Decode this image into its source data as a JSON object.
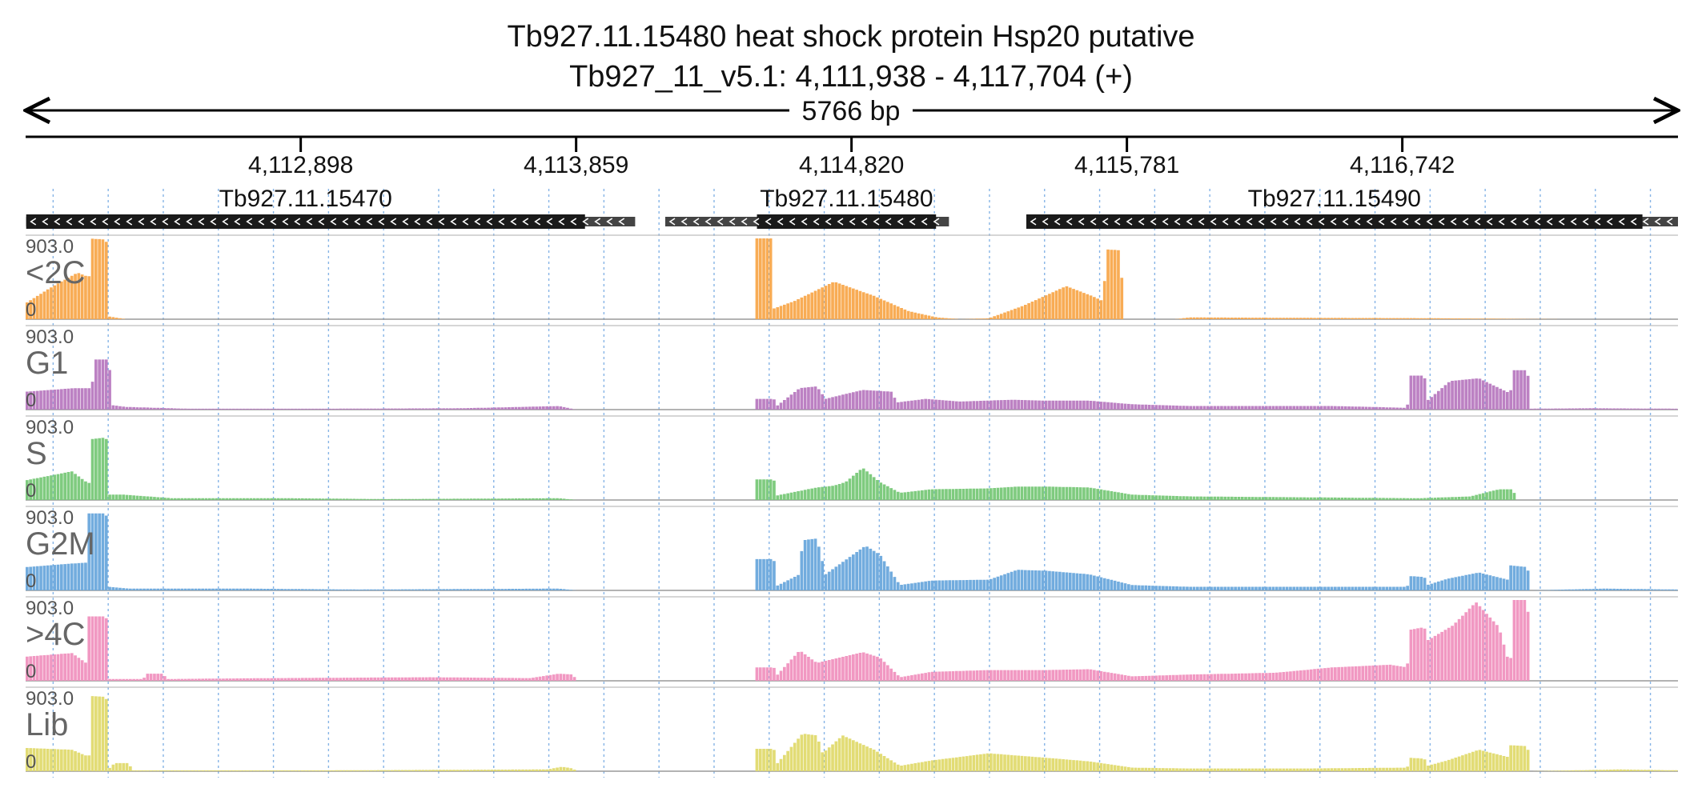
{
  "chart_data": {
    "type": "area",
    "title": "Tb927.11.15480  heat shock protein Hsp20  putative",
    "subtitle": "Tb927_11_v5.1: 4,111,938 - 4,117,704 (+)",
    "span_label": "5766 bp",
    "xlim": [
      4111938,
      4117704
    ],
    "ylim": [
      0,
      903.0
    ],
    "ymax_label": "903.0",
    "ymin_label": "0",
    "grid": true,
    "ticks": [
      {
        "value": 4112898,
        "label": "4,112,898"
      },
      {
        "value": 4113859,
        "label": "4,113,859"
      },
      {
        "value": 4114820,
        "label": "4,114,820"
      },
      {
        "value": 4115781,
        "label": "4,115,781"
      },
      {
        "value": 4116742,
        "label": "4,116,742"
      }
    ],
    "genes": [
      {
        "name": "Tb927.11.15470",
        "strand": "-",
        "utr_start": 4111940,
        "cds_start": 4111940,
        "cds_end": 4113890,
        "utr_end": 4114065
      },
      {
        "name": "Tb927.11.15480",
        "strand": "-",
        "utr_start": 4114170,
        "cds_start": 4114490,
        "cds_end": 4115115,
        "utr_end": 4115160
      },
      {
        "name": "Tb927.11.15490",
        "strand": "-",
        "utr_start": 4115430,
        "cds_start": 4115430,
        "cds_end": 4117580,
        "utr_end": 4117704
      }
    ],
    "tracks": [
      {
        "name": "<2C",
        "color": "#f8a84c",
        "profile": [
          [
            4111940,
            180
          ],
          [
            4112030,
            360
          ],
          [
            4112120,
            520
          ],
          [
            4112160,
            470
          ],
          [
            4112170,
            900
          ],
          [
            4112220,
            890
          ],
          [
            4112230,
            30
          ],
          [
            4112290,
            0
          ],
          [
            4114480,
            0
          ],
          [
            4114490,
            903
          ],
          [
            4114540,
            903
          ],
          [
            4114550,
            120
          ],
          [
            4114620,
            200
          ],
          [
            4114760,
            420
          ],
          [
            4114900,
            260
          ],
          [
            4115020,
            90
          ],
          [
            4115120,
            20
          ],
          [
            4115200,
            0
          ],
          [
            4115300,
            10
          ],
          [
            4115420,
            150
          ],
          [
            4115570,
            370
          ],
          [
            4115660,
            260
          ],
          [
            4115700,
            200
          ],
          [
            4115710,
            780
          ],
          [
            4115760,
            770
          ],
          [
            4115770,
            0
          ],
          [
            4115950,
            0
          ],
          [
            4116000,
            20
          ],
          [
            4116400,
            15
          ],
          [
            4116800,
            12
          ],
          [
            4117100,
            5
          ],
          [
            4117300,
            0
          ]
        ]
      },
      {
        "name": "G1",
        "color": "#b87ac0",
        "profile": [
          [
            4111940,
            200
          ],
          [
            4112110,
            240
          ],
          [
            4112170,
            240
          ],
          [
            4112180,
            560
          ],
          [
            4112230,
            560
          ],
          [
            4112240,
            50
          ],
          [
            4112290,
            30
          ],
          [
            4112500,
            10
          ],
          [
            4113000,
            10
          ],
          [
            4113460,
            15
          ],
          [
            4113800,
            40
          ],
          [
            4113860,
            0
          ],
          [
            4114480,
            0
          ],
          [
            4114490,
            120
          ],
          [
            4114550,
            120
          ],
          [
            4114560,
            40
          ],
          [
            4114640,
            240
          ],
          [
            4114700,
            260
          ],
          [
            4114730,
            120
          ],
          [
            4114860,
            220
          ],
          [
            4114960,
            200
          ],
          [
            4114980,
            80
          ],
          [
            4115080,
            120
          ],
          [
            4115200,
            90
          ],
          [
            4115380,
            110
          ],
          [
            4115500,
            100
          ],
          [
            4115650,
            100
          ],
          [
            4115800,
            60
          ],
          [
            4116000,
            40
          ],
          [
            4116300,
            40
          ],
          [
            4116500,
            40
          ],
          [
            4116760,
            20
          ],
          [
            4116770,
            380
          ],
          [
            4116820,
            380
          ],
          [
            4116830,
            100
          ],
          [
            4116910,
            320
          ],
          [
            4117010,
            350
          ],
          [
            4117120,
            180
          ],
          [
            4117130,
            440
          ],
          [
            4117180,
            440
          ],
          [
            4117190,
            10
          ],
          [
            4117400,
            15
          ],
          [
            4117700,
            10
          ]
        ]
      },
      {
        "name": "S",
        "color": "#78c878",
        "profile": [
          [
            4111940,
            220
          ],
          [
            4112100,
            320
          ],
          [
            4112160,
            180
          ],
          [
            4112170,
            680
          ],
          [
            4112220,
            700
          ],
          [
            4112230,
            60
          ],
          [
            4112280,
            60
          ],
          [
            4112450,
            20
          ],
          [
            4112850,
            20
          ],
          [
            4113200,
            10
          ],
          [
            4113800,
            20
          ],
          [
            4113860,
            0
          ],
          [
            4114480,
            0
          ],
          [
            4114490,
            230
          ],
          [
            4114550,
            230
          ],
          [
            4114560,
            50
          ],
          [
            4114700,
            140
          ],
          [
            4114760,
            160
          ],
          [
            4114800,
            200
          ],
          [
            4114860,
            360
          ],
          [
            4114920,
            200
          ],
          [
            4114990,
            80
          ],
          [
            4115100,
            120
          ],
          [
            4115300,
            130
          ],
          [
            4115400,
            150
          ],
          [
            4115500,
            150
          ],
          [
            4115650,
            140
          ],
          [
            4115800,
            60
          ],
          [
            4116000,
            40
          ],
          [
            4116400,
            30
          ],
          [
            4116800,
            20
          ],
          [
            4116980,
            40
          ],
          [
            4117080,
            120
          ],
          [
            4117130,
            120
          ],
          [
            4117140,
            0
          ],
          [
            4117704,
            0
          ]
        ]
      },
      {
        "name": "G2M",
        "color": "#6aa8dc",
        "profile": [
          [
            4111940,
            260
          ],
          [
            4112100,
            300
          ],
          [
            4112150,
            310
          ],
          [
            4112160,
            860
          ],
          [
            4112220,
            860
          ],
          [
            4112230,
            40
          ],
          [
            4112300,
            20
          ],
          [
            4112700,
            20
          ],
          [
            4113100,
            10
          ],
          [
            4113800,
            20
          ],
          [
            4113860,
            0
          ],
          [
            4114480,
            0
          ],
          [
            4114490,
            350
          ],
          [
            4114550,
            350
          ],
          [
            4114560,
            50
          ],
          [
            4114640,
            180
          ],
          [
            4114650,
            560
          ],
          [
            4114700,
            580
          ],
          [
            4114730,
            180
          ],
          [
            4114870,
            500
          ],
          [
            4114920,
            400
          ],
          [
            4114990,
            60
          ],
          [
            4115100,
            110
          ],
          [
            4115300,
            120
          ],
          [
            4115400,
            230
          ],
          [
            4115500,
            220
          ],
          [
            4115650,
            180
          ],
          [
            4115800,
            60
          ],
          [
            4116000,
            40
          ],
          [
            4116400,
            40
          ],
          [
            4116760,
            40
          ],
          [
            4116770,
            160
          ],
          [
            4116820,
            150
          ],
          [
            4116830,
            60
          ],
          [
            4116900,
            130
          ],
          [
            4117010,
            200
          ],
          [
            4117110,
            120
          ],
          [
            4117120,
            280
          ],
          [
            4117180,
            260
          ],
          [
            4117190,
            0
          ],
          [
            4117450,
            20
          ],
          [
            4117700,
            10
          ]
        ]
      },
      {
        "name": ">4C",
        "color": "#f092bf",
        "profile": [
          [
            4111940,
            270
          ],
          [
            4112100,
            310
          ],
          [
            4112150,
            200
          ],
          [
            4112160,
            720
          ],
          [
            4112220,
            720
          ],
          [
            4112230,
            20
          ],
          [
            4112350,
            20
          ],
          [
            4112360,
            80
          ],
          [
            4112420,
            80
          ],
          [
            4112430,
            20
          ],
          [
            4112800,
            30
          ],
          [
            4113350,
            40
          ],
          [
            4113700,
            30
          ],
          [
            4113800,
            80
          ],
          [
            4113850,
            70
          ],
          [
            4113860,
            0
          ],
          [
            4114480,
            0
          ],
          [
            4114490,
            150
          ],
          [
            4114550,
            150
          ],
          [
            4114560,
            60
          ],
          [
            4114640,
            340
          ],
          [
            4114700,
            200
          ],
          [
            4114860,
            320
          ],
          [
            4114920,
            260
          ],
          [
            4114990,
            40
          ],
          [
            4115100,
            100
          ],
          [
            4115300,
            120
          ],
          [
            4115500,
            120
          ],
          [
            4115650,
            130
          ],
          [
            4115800,
            50
          ],
          [
            4116000,
            70
          ],
          [
            4116300,
            90
          ],
          [
            4116500,
            150
          ],
          [
            4116700,
            180
          ],
          [
            4116760,
            150
          ],
          [
            4116770,
            570
          ],
          [
            4116820,
            600
          ],
          [
            4116830,
            450
          ],
          [
            4116920,
            620
          ],
          [
            4117000,
            880
          ],
          [
            4117080,
            600
          ],
          [
            4117120,
            150
          ],
          [
            4117130,
            903
          ],
          [
            4117180,
            903
          ],
          [
            4117190,
            0
          ],
          [
            4117704,
            0
          ]
        ]
      },
      {
        "name": "Lib",
        "color": "#e0da6e",
        "profile": [
          [
            4111940,
            260
          ],
          [
            4112100,
            240
          ],
          [
            4112160,
            160
          ],
          [
            4112170,
            840
          ],
          [
            4112220,
            830
          ],
          [
            4112230,
            30
          ],
          [
            4112250,
            90
          ],
          [
            4112300,
            90
          ],
          [
            4112310,
            10
          ],
          [
            4113000,
            10
          ],
          [
            4113760,
            20
          ],
          [
            4113810,
            50
          ],
          [
            4113850,
            30
          ],
          [
            4113860,
            0
          ],
          [
            4114480,
            0
          ],
          [
            4114490,
            250
          ],
          [
            4114550,
            250
          ],
          [
            4114560,
            80
          ],
          [
            4114650,
            420
          ],
          [
            4114700,
            400
          ],
          [
            4114720,
            200
          ],
          [
            4114790,
            400
          ],
          [
            4114900,
            240
          ],
          [
            4114990,
            60
          ],
          [
            4115100,
            120
          ],
          [
            4115300,
            200
          ],
          [
            4115500,
            150
          ],
          [
            4115650,
            110
          ],
          [
            4115800,
            40
          ],
          [
            4116000,
            30
          ],
          [
            4116400,
            30
          ],
          [
            4116760,
            40
          ],
          [
            4116770,
            150
          ],
          [
            4116820,
            140
          ],
          [
            4116830,
            60
          ],
          [
            4116900,
            120
          ],
          [
            4117010,
            240
          ],
          [
            4117110,
            160
          ],
          [
            4117120,
            290
          ],
          [
            4117180,
            280
          ],
          [
            4117190,
            0
          ],
          [
            4117500,
            20
          ],
          [
            4117704,
            10
          ]
        ]
      }
    ]
  }
}
